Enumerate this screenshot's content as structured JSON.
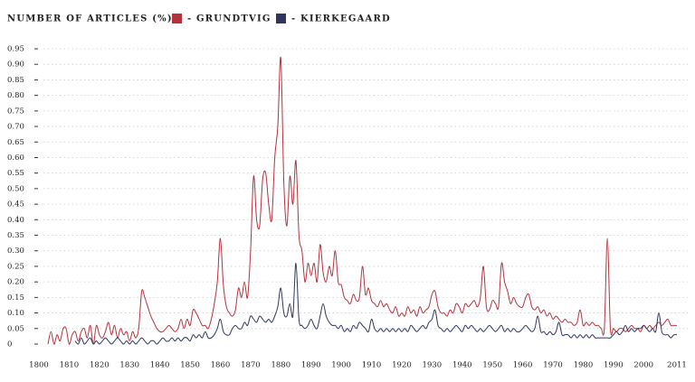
{
  "chart_data": {
    "type": "line",
    "title": "NUMBER OF ARTICLES (%)",
    "x": [
      1803,
      1804,
      1805,
      1806,
      1807,
      1808,
      1809,
      1810,
      1811,
      1812,
      1813,
      1814,
      1815,
      1816,
      1817,
      1818,
      1819,
      1820,
      1821,
      1822,
      1823,
      1824,
      1825,
      1826,
      1827,
      1828,
      1829,
      1830,
      1831,
      1832,
      1833,
      1834,
      1835,
      1836,
      1837,
      1838,
      1839,
      1840,
      1841,
      1842,
      1843,
      1844,
      1845,
      1846,
      1847,
      1848,
      1849,
      1850,
      1851,
      1852,
      1853,
      1854,
      1855,
      1856,
      1857,
      1858,
      1859,
      1860,
      1861,
      1862,
      1863,
      1864,
      1865,
      1866,
      1867,
      1868,
      1869,
      1870,
      1871,
      1872,
      1873,
      1874,
      1875,
      1876,
      1877,
      1878,
      1879,
      1880,
      1881,
      1882,
      1883,
      1884,
      1885,
      1886,
      1887,
      1888,
      1889,
      1890,
      1891,
      1892,
      1893,
      1894,
      1895,
      1896,
      1897,
      1898,
      1899,
      1900,
      1901,
      1902,
      1903,
      1904,
      1905,
      1906,
      1907,
      1908,
      1909,
      1910,
      1911,
      1912,
      1913,
      1914,
      1915,
      1916,
      1917,
      1918,
      1919,
      1920,
      1921,
      1922,
      1923,
      1924,
      1925,
      1926,
      1927,
      1928,
      1929,
      1930,
      1931,
      1932,
      1933,
      1934,
      1935,
      1936,
      1937,
      1938,
      1939,
      1940,
      1941,
      1942,
      1943,
      1944,
      1945,
      1946,
      1947,
      1948,
      1949,
      1950,
      1951,
      1952,
      1953,
      1954,
      1955,
      1956,
      1957,
      1958,
      1959,
      1960,
      1961,
      1962,
      1963,
      1964,
      1965,
      1966,
      1967,
      1968,
      1969,
      1970,
      1971,
      1972,
      1973,
      1974,
      1975,
      1976,
      1977,
      1978,
      1979,
      1980,
      1981,
      1982,
      1983,
      1984,
      1985,
      1986,
      1987,
      1988,
      1989,
      1990,
      1991,
      1992,
      1993,
      1994,
      1995,
      1996,
      1997,
      1998,
      1999,
      2000,
      2001,
      2002,
      2003,
      2004,
      2005,
      2006,
      2007,
      2008,
      2009,
      2010,
      2011
    ],
    "series": [
      {
        "name": "- GRUNDTVIG",
        "color": "#b5323c",
        "values": [
          0,
          0.04,
          0,
          0.03,
          0.01,
          0.05,
          0.05,
          0,
          0.03,
          0.04,
          0.01,
          0.04,
          0.05,
          0.02,
          0.06,
          0,
          0.06,
          0.03,
          0.02,
          0.04,
          0.07,
          0.03,
          0.06,
          0.02,
          0.05,
          0.03,
          0.04,
          0.01,
          0.04,
          0.02,
          0.05,
          0.17,
          0.15,
          0.12,
          0.09,
          0.07,
          0.05,
          0.04,
          0.04,
          0.05,
          0.06,
          0.05,
          0.04,
          0.05,
          0.08,
          0.05,
          0.08,
          0.06,
          0.11,
          0.1,
          0.08,
          0.06,
          0.06,
          0.05,
          0.08,
          0.13,
          0.2,
          0.34,
          0.19,
          0.12,
          0.1,
          0.09,
          0.11,
          0.18,
          0.15,
          0.2,
          0.15,
          0.3,
          0.54,
          0.4,
          0.38,
          0.53,
          0.55,
          0.45,
          0.4,
          0.6,
          0.7,
          0.92,
          0.52,
          0.38,
          0.54,
          0.45,
          0.59,
          0.35,
          0.3,
          0.2,
          0.26,
          0.22,
          0.26,
          0.2,
          0.32,
          0.23,
          0.2,
          0.25,
          0.22,
          0.3,
          0.2,
          0.19,
          0.15,
          0.14,
          0.13,
          0.16,
          0.14,
          0.15,
          0.25,
          0.16,
          0.18,
          0.14,
          0.13,
          0.12,
          0.14,
          0.12,
          0.13,
          0.11,
          0.1,
          0.12,
          0.09,
          0.1,
          0.09,
          0.12,
          0.1,
          0.11,
          0.09,
          0.12,
          0.1,
          0.11,
          0.12,
          0.16,
          0.17,
          0.12,
          0.1,
          0.1,
          0.09,
          0.11,
          0.1,
          0.13,
          0.12,
          0.1,
          0.13,
          0.12,
          0.13,
          0.14,
          0.12,
          0.15,
          0.25,
          0.12,
          0.11,
          0.14,
          0.13,
          0.12,
          0.26,
          0.2,
          0.17,
          0.13,
          0.15,
          0.13,
          0.12,
          0.12,
          0.15,
          0.16,
          0.12,
          0.11,
          0.12,
          0.1,
          0.11,
          0.09,
          0.1,
          0.08,
          0.09,
          0.08,
          0.07,
          0.08,
          0.07,
          0.07,
          0.06,
          0.07,
          0.11,
          0.06,
          0.07,
          0.06,
          0.07,
          0.06,
          0.06,
          0.05,
          0.05,
          0.34,
          0.05,
          0.05,
          0.04,
          0.05,
          0.05,
          0.04,
          0.05,
          0.06,
          0.05,
          0.05,
          0.04,
          0.06,
          0.05,
          0.06,
          0.05,
          0.06,
          0.07,
          0.06,
          0.07,
          0.08,
          0.06,
          0.06,
          0.06
        ]
      },
      {
        "name": "- KIERKEGAARD",
        "color": "#2f355e",
        "values": [
          null,
          null,
          null,
          null,
          null,
          null,
          null,
          null,
          null,
          0.01,
          0,
          0.02,
          0,
          0.01,
          0.02,
          0,
          0.01,
          0,
          0.01,
          0.02,
          0.01,
          0,
          0.01,
          0.02,
          0.01,
          0,
          0.01,
          0,
          0.01,
          0,
          0.01,
          0.02,
          0.01,
          0,
          0.01,
          0.01,
          0,
          0.01,
          0.02,
          0.01,
          0.01,
          0.02,
          0.01,
          0.02,
          0.01,
          0.02,
          0.02,
          0.01,
          0.03,
          0.02,
          0.03,
          0.02,
          0.04,
          0.02,
          0.02,
          0.03,
          0.05,
          0.08,
          0.04,
          0.03,
          0.03,
          0.05,
          0.06,
          0.05,
          0.05,
          0.07,
          0.06,
          0.09,
          0.08,
          0.07,
          0.09,
          0.08,
          0.07,
          0.08,
          0.07,
          0.09,
          0.12,
          0.18,
          0.1,
          0.09,
          0.13,
          0.09,
          0.26,
          0.08,
          0.06,
          0.05,
          0.06,
          0.08,
          0.06,
          0.05,
          0.09,
          0.13,
          0.09,
          0.07,
          0.06,
          0.06,
          0.05,
          0.06,
          0.04,
          0.05,
          0.04,
          0.06,
          0.05,
          0.07,
          0.06,
          0.05,
          0.04,
          0.08,
          0.05,
          0.04,
          0.05,
          0.04,
          0.05,
          0.04,
          0.05,
          0.04,
          0.05,
          0.04,
          0.05,
          0.04,
          0.06,
          0.05,
          0.04,
          0.05,
          0.06,
          0.05,
          0.07,
          0.08,
          0.11,
          0.06,
          0.05,
          0.04,
          0.05,
          0.04,
          0.05,
          0.06,
          0.05,
          0.04,
          0.06,
          0.05,
          0.06,
          0.05,
          0.04,
          0.05,
          0.04,
          0.05,
          0.06,
          0.05,
          0.04,
          0.05,
          0.06,
          0.04,
          0.05,
          0.04,
          0.05,
          0.04,
          0.04,
          0.05,
          0.06,
          0.05,
          0.04,
          0.05,
          0.09,
          0.04,
          0.04,
          0.03,
          0.04,
          0.03,
          0.04,
          0.07,
          0.03,
          0.03,
          0.03,
          0.02,
          0.03,
          0.02,
          0.03,
          0.02,
          0.03,
          0.02,
          0.03,
          0.02,
          0.02,
          0.02,
          0.02,
          0.02,
          0.02,
          0.03,
          0.04,
          0.03,
          0.04,
          0.06,
          0.04,
          0.05,
          0.04,
          0.05,
          0.05,
          0.06,
          0.05,
          0.04,
          0.05,
          0.04,
          0.1,
          0.04,
          0.03,
          0.03,
          0.02,
          0.03,
          0.03
        ]
      }
    ],
    "xlim": [
      1800,
      2011
    ],
    "xticks": [
      1800,
      1810,
      1820,
      1830,
      1840,
      1850,
      1860,
      1870,
      1880,
      1890,
      1900,
      1910,
      1920,
      1930,
      1940,
      1950,
      1960,
      1970,
      1980,
      1990,
      2000,
      2011
    ],
    "ylim": [
      0,
      0.95
    ],
    "yticks": [
      0,
      0.05,
      {
        "value": 0.1,
        "label": "0.10"
      },
      0.15,
      {
        "value": 0.2,
        "label": "0.20"
      },
      0.25,
      {
        "value": 0.3,
        "label": "0.30"
      },
      0.35,
      {
        "value": 0.4,
        "label": "0.40"
      },
      0.45,
      {
        "value": 0.5,
        "label": "0.50"
      },
      0.55,
      {
        "value": 0.6,
        "label": "0.60"
      },
      0.65,
      {
        "value": 0.7,
        "label": "0.70"
      },
      0.75,
      {
        "value": 0.8,
        "label": "0.80"
      },
      0.85,
      {
        "value": 0.9,
        "label": "0.90"
      },
      0.95
    ],
    "grid": true
  }
}
